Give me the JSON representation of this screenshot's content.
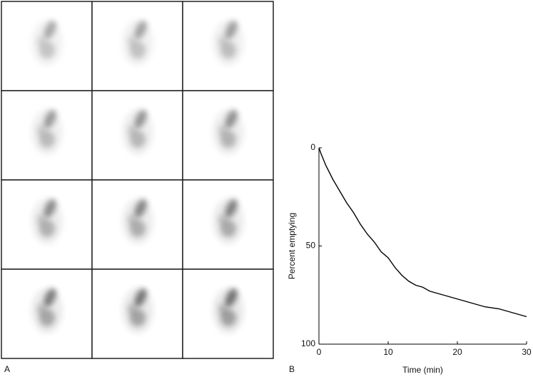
{
  "panels": {
    "left_label": "A",
    "right_label": "B"
  },
  "chart_data": {
    "type": "line",
    "x_label": "Time (min)",
    "y_label": "Percent emptying",
    "x": [
      0,
      0.3,
      1,
      2,
      3,
      4,
      5,
      6,
      7,
      8,
      9,
      10,
      11,
      12,
      13,
      14,
      15,
      16,
      17,
      18,
      19,
      20,
      22,
      24,
      26,
      28,
      30
    ],
    "y": [
      0,
      3,
      9,
      16,
      22,
      28,
      33,
      39,
      44,
      48,
      53,
      56,
      61,
      65,
      68,
      70,
      71,
      73,
      74,
      75,
      76,
      77,
      79,
      81,
      82,
      84,
      86
    ],
    "color": "#000000",
    "xlim": [
      0,
      30
    ],
    "xticks": [
      0,
      10,
      20,
      30
    ],
    "ylim": [
      0,
      100
    ],
    "yticks": [
      0,
      50,
      100
    ],
    "y_inverted": true
  }
}
